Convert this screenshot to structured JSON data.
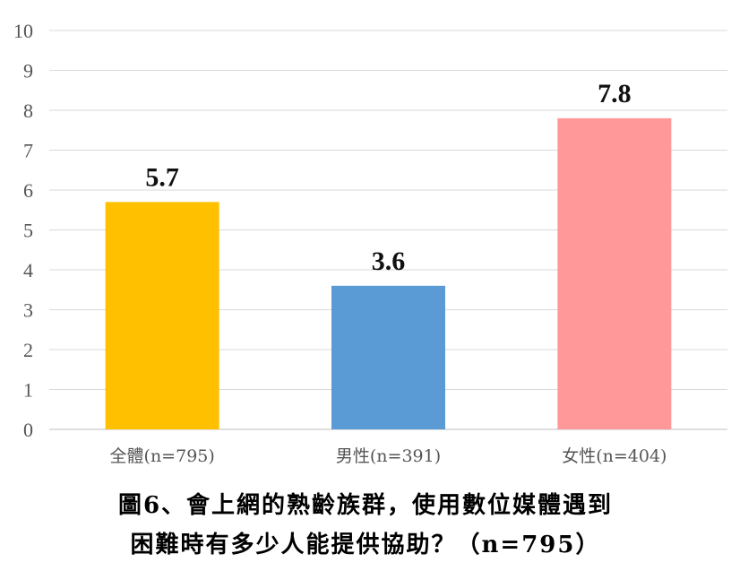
{
  "chart_data": {
    "type": "bar",
    "categories": [
      "全體(n=795)",
      "男性(n=391)",
      "女性(n=404)"
    ],
    "values": [
      5.7,
      3.6,
      7.8
    ],
    "data_labels": [
      "5.7",
      "3.6",
      "7.8"
    ],
    "colors": [
      "#FFC000",
      "#5B9BD5",
      "#FF9999"
    ],
    "ylim": [
      0,
      10
    ],
    "yticks": [
      "0",
      "1",
      "2",
      "3",
      "4",
      "5",
      "6",
      "7",
      "8",
      "9",
      "10"
    ],
    "grid": true,
    "legend": "none"
  },
  "caption": {
    "line1": "圖6、會上網的熟齡族群，使用數位媒體遇到",
    "line2": "困難時有多少人能提供協助？（n=795）"
  }
}
